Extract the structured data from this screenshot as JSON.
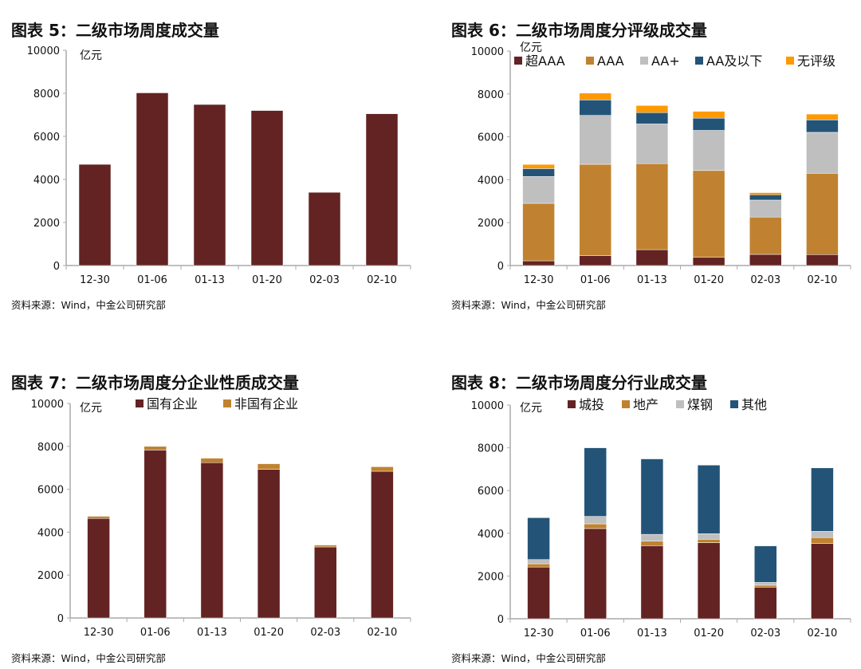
{
  "chart_data": [
    {
      "type": "bar",
      "title": "图表 5：二级市场周度成交量",
      "unit": "亿元",
      "categories": [
        "12-30",
        "01-06",
        "01-13",
        "01-20",
        "02-03",
        "02-10"
      ],
      "series": [
        {
          "values": [
            4700,
            8020,
            7480,
            7200,
            3400,
            7050
          ],
          "color": "#632323"
        }
      ],
      "ylim": [
        0,
        10000
      ],
      "yticks": [
        0,
        2000,
        4000,
        6000,
        8000,
        10000
      ],
      "source": "资料来源：Wind，中金公司研究部"
    },
    {
      "type": "stacked-bar",
      "title": "图表 6：二级市场周度分评级成交量",
      "unit": "亿元",
      "categories": [
        "12-30",
        "01-06",
        "01-13",
        "01-20",
        "02-03",
        "02-10"
      ],
      "series": [
        {
          "name": "超AAA",
          "values": [
            220,
            460,
            740,
            380,
            520,
            510
          ],
          "color": "#632323"
        },
        {
          "name": "AAA",
          "values": [
            2680,
            4260,
            4010,
            4050,
            1740,
            3790
          ],
          "color": "#C08230"
        },
        {
          "name": "AA+",
          "values": [
            1250,
            2280,
            1850,
            1870,
            790,
            1910
          ],
          "color": "#BFBFBF"
        },
        {
          "name": "AA及以下",
          "values": [
            370,
            720,
            530,
            570,
            250,
            580
          ],
          "color": "#235478"
        },
        {
          "name": "无评级",
          "values": [
            195,
            320,
            330,
            320,
            100,
            270
          ],
          "color": "#FF9900"
        }
      ],
      "ylim": [
        0,
        10000
      ],
      "yticks": [
        0,
        2000,
        4000,
        6000,
        8000,
        10000
      ],
      "legend": "top",
      "source": "资料来源：Wind，中金公司研究部"
    },
    {
      "type": "stacked-bar",
      "title": "图表 7：二级市场周度分企业性质成交量",
      "unit": "亿元",
      "categories": [
        "12-30",
        "01-06",
        "01-13",
        "01-20",
        "02-03",
        "02-10"
      ],
      "series": [
        {
          "name": "国有企业",
          "values": [
            4640,
            7830,
            7240,
            6930,
            3310,
            6840
          ],
          "color": "#632323"
        },
        {
          "name": "非国有企业",
          "values": [
            100,
            170,
            210,
            260,
            90,
            210
          ],
          "color": "#C08230"
        }
      ],
      "ylim": [
        0,
        10000
      ],
      "yticks": [
        0,
        2000,
        4000,
        6000,
        8000,
        10000
      ],
      "legend": "top",
      "source": "资料来源：Wind，中金公司研究部"
    },
    {
      "type": "stacked-bar",
      "title": "图表 8：二级市场周度分行业成交量",
      "unit": "亿元",
      "categories": [
        "12-30",
        "01-06",
        "01-13",
        "01-20",
        "02-03",
        "02-10"
      ],
      "series": [
        {
          "name": "城投",
          "values": [
            2420,
            4220,
            3420,
            3560,
            1480,
            3520
          ],
          "color": "#632323"
        },
        {
          "name": "地产",
          "values": [
            150,
            220,
            210,
            160,
            90,
            280
          ],
          "color": "#C08230"
        },
        {
          "name": "煤钢",
          "values": [
            200,
            350,
            320,
            260,
            130,
            290
          ],
          "color": "#BFBFBF"
        },
        {
          "name": "其他",
          "values": [
            1960,
            3210,
            3530,
            3210,
            1710,
            2970
          ],
          "color": "#235478"
        }
      ],
      "ylim": [
        0,
        10000
      ],
      "yticks": [
        0,
        2000,
        4000,
        6000,
        8000,
        10000
      ],
      "legend": "top",
      "source": "资料来源：Wind，中金公司研究部"
    }
  ]
}
